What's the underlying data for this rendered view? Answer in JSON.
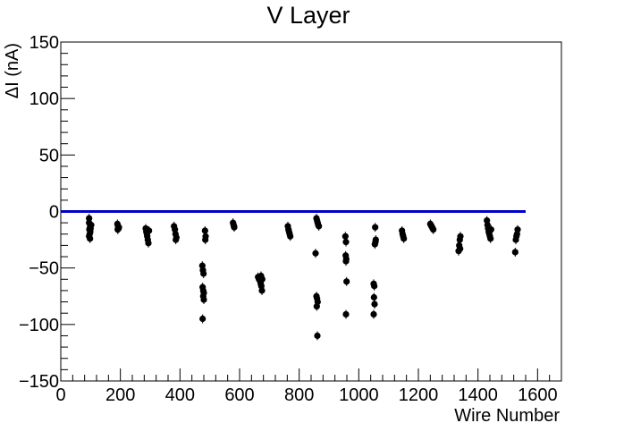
{
  "chart_data": {
    "type": "scatter",
    "title": "V Layer",
    "xlabel": "Wire Number",
    "ylabel": "ΔI (nA)",
    "xlim": [
      0,
      1680
    ],
    "ylim": [
      -150,
      150
    ],
    "xticks": [
      0,
      200,
      400,
      600,
      800,
      1000,
      1200,
      1400,
      1600
    ],
    "yticks": [
      -150,
      -100,
      -50,
      0,
      50,
      100,
      150
    ],
    "ytick_labels": [
      "−150",
      "−100",
      "−50",
      "0",
      "50",
      "100",
      "150"
    ],
    "grid": false,
    "legend": "none",
    "reference_line": {
      "y": 0,
      "x_start": 0,
      "x_end": 1560,
      "color": "#0000cc"
    },
    "series": [
      {
        "marker_color": "#000000",
        "points": [
          [
            95,
            -6
          ],
          [
            95,
            -10
          ],
          [
            98,
            -14
          ],
          [
            96,
            -16
          ],
          [
            99,
            -18
          ],
          [
            97,
            -20
          ],
          [
            95,
            -22
          ],
          [
            98,
            -24
          ],
          [
            100,
            -15
          ],
          [
            102,
            -12
          ],
          [
            190,
            -11
          ],
          [
            192,
            -13
          ],
          [
            194,
            -15
          ],
          [
            191,
            -16
          ],
          [
            195,
            -14
          ],
          [
            285,
            -15
          ],
          [
            287,
            -18
          ],
          [
            289,
            -20
          ],
          [
            290,
            -22
          ],
          [
            292,
            -25
          ],
          [
            294,
            -28
          ],
          [
            296,
            -17
          ],
          [
            380,
            -13
          ],
          [
            383,
            -16
          ],
          [
            385,
            -20
          ],
          [
            388,
            -23
          ],
          [
            386,
            -25
          ],
          [
            475,
            -48
          ],
          [
            477,
            -52
          ],
          [
            479,
            -55
          ],
          [
            476,
            -67
          ],
          [
            478,
            -70
          ],
          [
            480,
            -72
          ],
          [
            478,
            -75
          ],
          [
            480,
            -78
          ],
          [
            476,
            -95
          ],
          [
            484,
            -17
          ],
          [
            486,
            -22
          ],
          [
            485,
            -25
          ],
          [
            578,
            -10
          ],
          [
            580,
            -12
          ],
          [
            582,
            -14
          ],
          [
            581,
            -13
          ],
          [
            662,
            -58
          ],
          [
            665,
            -60
          ],
          [
            668,
            -61
          ],
          [
            670,
            -62
          ],
          [
            672,
            -57
          ],
          [
            674,
            -59
          ],
          [
            676,
            -60
          ],
          [
            671,
            -64
          ],
          [
            673,
            -66
          ],
          [
            675,
            -70
          ],
          [
            762,
            -13
          ],
          [
            764,
            -16
          ],
          [
            766,
            -18
          ],
          [
            768,
            -20
          ],
          [
            770,
            -22
          ],
          [
            855,
            -37
          ],
          [
            858,
            -6
          ],
          [
            860,
            -8
          ],
          [
            862,
            -10
          ],
          [
            864,
            -12
          ],
          [
            866,
            -13
          ],
          [
            858,
            -75
          ],
          [
            860,
            -77
          ],
          [
            862,
            -80
          ],
          [
            859,
            -84
          ],
          [
            861,
            -110
          ]
        ]
      },
      {
        "marker_color": "#000000",
        "points": [
          [
            955,
            -22
          ],
          [
            957,
            -27
          ],
          [
            956,
            -39
          ],
          [
            958,
            -42
          ],
          [
            957,
            -44
          ],
          [
            959,
            -62
          ],
          [
            957,
            -91
          ],
          [
            1050,
            -64
          ],
          [
            1052,
            -66
          ],
          [
            1051,
            -76
          ],
          [
            1053,
            -82
          ],
          [
            1050,
            -91
          ],
          [
            1055,
            -14
          ],
          [
            1057,
            -25
          ],
          [
            1056,
            -27
          ],
          [
            1054,
            -29
          ],
          [
            1145,
            -17
          ],
          [
            1147,
            -20
          ],
          [
            1149,
            -22
          ],
          [
            1151,
            -24
          ],
          [
            1240,
            -11
          ],
          [
            1242,
            -12
          ],
          [
            1244,
            -13
          ],
          [
            1246,
            -14
          ],
          [
            1248,
            -15
          ],
          [
            1250,
            -16
          ],
          [
            1335,
            -35
          ],
          [
            1337,
            -30
          ],
          [
            1339,
            -25
          ],
          [
            1341,
            -22
          ],
          [
            1340,
            -33
          ],
          [
            1430,
            -8
          ],
          [
            1432,
            -12
          ],
          [
            1434,
            -15
          ],
          [
            1436,
            -18
          ],
          [
            1438,
            -20
          ],
          [
            1440,
            -22
          ],
          [
            1442,
            -24
          ],
          [
            1444,
            -16
          ],
          [
            1525,
            -36
          ],
          [
            1527,
            -25
          ],
          [
            1529,
            -22
          ],
          [
            1531,
            -20
          ],
          [
            1533,
            -16
          ]
        ]
      }
    ]
  }
}
